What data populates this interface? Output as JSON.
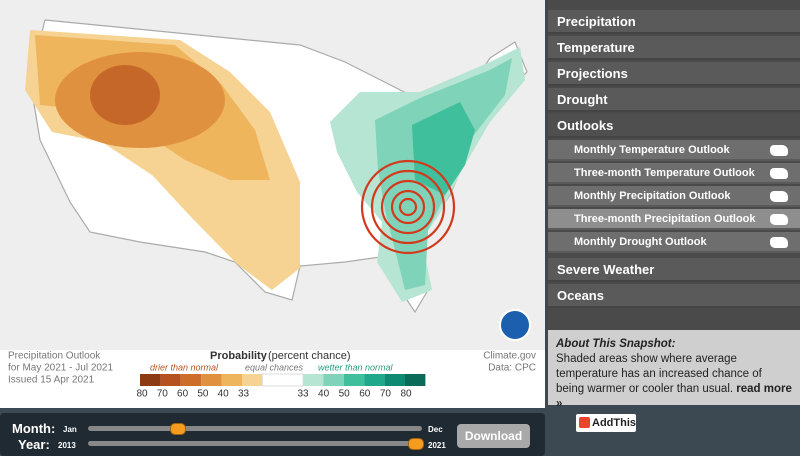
{
  "map": {
    "title_lines": [
      "Precipitation Outlook",
      "for May 2021 - Jul 2021",
      "Issued 15 Apr 2021"
    ],
    "legend": {
      "title": "Probability",
      "title_note": "(percent chance)",
      "drier": "drier than normal",
      "equal": "equal chances",
      "wetter": "wetter than normal",
      "drier_ticks": [
        "80",
        "70",
        "60",
        "50",
        "40",
        "33"
      ],
      "wetter_ticks": [
        "33",
        "40",
        "50",
        "60",
        "70",
        "80"
      ]
    },
    "credit": "Climate.gov",
    "source": "Data: CPC"
  },
  "menu": {
    "items": [
      "Precipitation",
      "Temperature",
      "Projections",
      "Drought",
      "Outlooks"
    ],
    "sub_items": [
      "Monthly Temperature Outlook",
      "Three-month Temperature Outlook",
      "Monthly Precipitation Outlook",
      "Three-month Precipitation Outlook",
      "Monthly Drought Outlook"
    ],
    "after_items": [
      "Severe Weather",
      "Oceans"
    ]
  },
  "about": {
    "title": "About This Snapshot:",
    "text": "Shaded areas show where average temperature has an increased chance of being warmer or cooler than usual.",
    "link": "read more »"
  },
  "controls": {
    "month_label": "Month:",
    "month_start": "Jan",
    "month_end": "Dec",
    "year_label": "Year:",
    "year_start": "2013",
    "year_end": "2021",
    "button": "Download"
  },
  "share": "AddThis"
}
